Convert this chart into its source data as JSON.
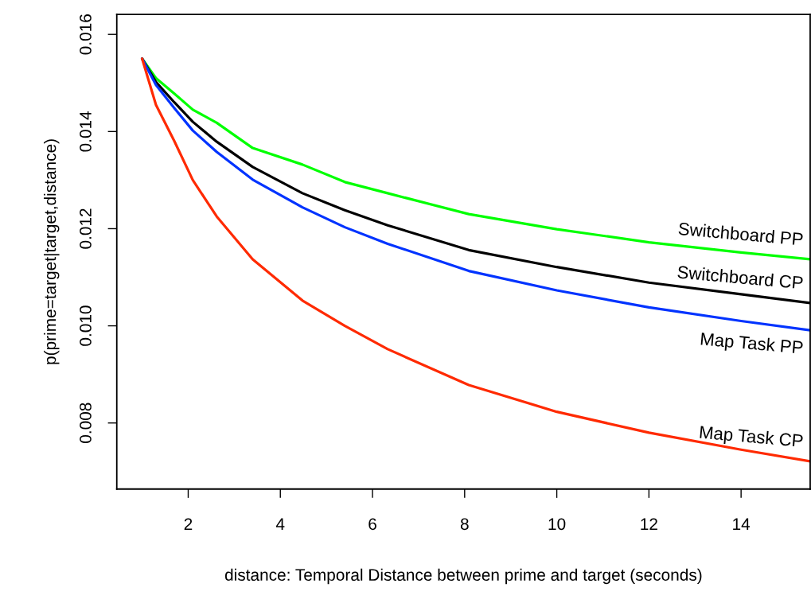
{
  "chart_data": {
    "type": "line",
    "xlabel": "distance: Temporal Distance between prime and target (seconds)",
    "ylabel": "p(prime=target|target,distance)",
    "x": [
      1,
      1.3,
      1.7,
      2.1,
      2.62,
      3.4,
      4.48,
      5.4,
      6.33,
      8.09,
      10,
      12,
      14,
      15.5
    ],
    "series": [
      {
        "name": "Switchboard PP",
        "color": "#00ff00",
        "values": [
          0.0155,
          0.0151,
          0.01478,
          0.01445,
          0.01418,
          0.01366,
          0.01332,
          0.01296,
          0.01273,
          0.0123,
          0.01199,
          0.01172,
          0.01151,
          0.01137
        ]
      },
      {
        "name": "Switchboard CP",
        "color": "#000000",
        "values": [
          0.0155,
          0.01502,
          0.0146,
          0.0142,
          0.01379,
          0.01327,
          0.01273,
          0.01238,
          0.01207,
          0.01156,
          0.01121,
          0.01089,
          0.01065,
          0.01047
        ]
      },
      {
        "name": "Map Task PP",
        "color": "#0033ff",
        "values": [
          0.0155,
          0.01496,
          0.01448,
          0.01402,
          0.01358,
          0.01301,
          0.01244,
          0.01203,
          0.01169,
          0.01113,
          0.01073,
          0.01038,
          0.0101,
          0.00991
        ]
      },
      {
        "name": "Map Task CP",
        "color": "#ff2a00",
        "values": [
          0.0155,
          0.01455,
          0.0138,
          0.013,
          0.01225,
          0.01137,
          0.01052,
          0.01,
          0.00952,
          0.00878,
          0.00823,
          0.0078,
          0.00745,
          0.00721
        ]
      }
    ],
    "xlim": [
      0.45,
      15.5
    ],
    "ylim": [
      0.00664,
      0.01641
    ],
    "xticks": [
      2,
      4,
      6,
      8,
      10,
      12,
      14
    ],
    "yticks": [
      0.008,
      {
        "value": 0.01,
        "label": "0.010"
      },
      0.012,
      0.014,
      0.016
    ],
    "grid": false,
    "line_style": "solid",
    "marker": "none"
  }
}
